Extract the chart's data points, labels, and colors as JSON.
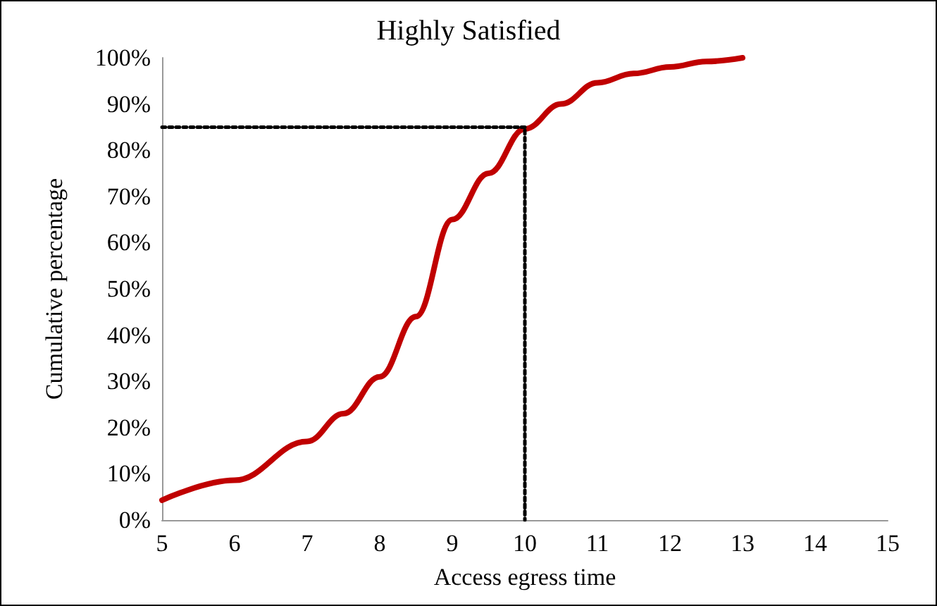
{
  "chart_data": {
    "type": "line",
    "title": "Highly Satisfied",
    "xlabel": "Access egress time",
    "ylabel": "Cumulative percentage",
    "series": [
      {
        "color": "#c00000",
        "x": [
          5,
          6,
          7,
          7.5,
          8,
          8.5,
          9,
          9.5,
          10,
          10.5,
          11,
          11.5,
          12,
          12.5,
          13
        ],
        "values": [
          4.3,
          8.6,
          17,
          23,
          31,
          44,
          65,
          75,
          84.6,
          90,
          94.6,
          96.6,
          98,
          99.2,
          100
        ]
      },
      {
        "color": "#000000",
        "line_style": "dotted",
        "x": [
          5,
          10,
          10
        ],
        "values": [
          85,
          85,
          0
        ]
      }
    ],
    "xlim": [
      5,
      15
    ],
    "xticks": [
      5,
      6,
      7,
      8,
      9,
      10,
      11,
      12,
      13,
      14,
      15
    ],
    "ylim": [
      0,
      100
    ],
    "yticks": [
      {
        "value": 0,
        "label": "0%"
      },
      {
        "value": 10,
        "label": "10%"
      },
      {
        "value": 20,
        "label": "20%"
      },
      {
        "value": 30,
        "label": "30%"
      },
      {
        "value": 40,
        "label": "40%"
      },
      {
        "value": 50,
        "label": "50%"
      },
      {
        "value": 60,
        "label": "60%"
      },
      {
        "value": 70,
        "label": "70%"
      },
      {
        "value": 80,
        "label": "80%"
      },
      {
        "value": 90,
        "label": "90%"
      },
      {
        "value": 100,
        "label": "100%"
      }
    ],
    "grid": false,
    "marker": "none",
    "line_style": "solid"
  }
}
